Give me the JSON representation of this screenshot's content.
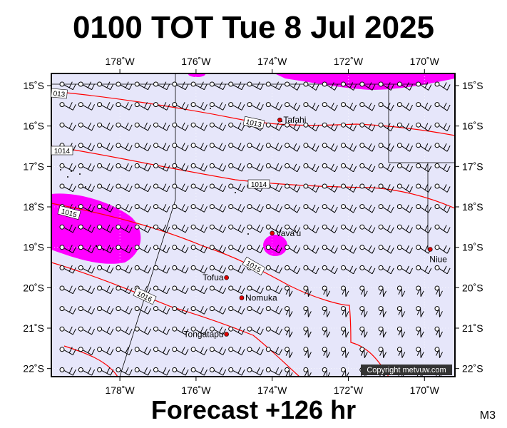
{
  "header": {
    "title": "0100 TOT Tue 8 Jul 2025"
  },
  "footer": {
    "forecast": "Forecast +126 hr",
    "code": "M3"
  },
  "map": {
    "lon_range": [
      -179.8,
      -169.2
    ],
    "lat_range": [
      -22.2,
      -14.7
    ],
    "lon_ticks": [
      {
        "value": -178,
        "label": "178˚W"
      },
      {
        "value": -176,
        "label": "176˚W"
      },
      {
        "value": -174,
        "label": "174˚W"
      },
      {
        "value": -172,
        "label": "172˚W"
      },
      {
        "value": -170,
        "label": "170˚W"
      }
    ],
    "lat_ticks": [
      {
        "value": -15,
        "label": "15˚S"
      },
      {
        "value": -16,
        "label": "16˚S"
      },
      {
        "value": -17,
        "label": "17˚S"
      },
      {
        "value": -18,
        "label": "18˚S"
      },
      {
        "value": -19,
        "label": "19˚S"
      },
      {
        "value": -20,
        "label": "20˚S"
      },
      {
        "value": -21,
        "label": "21˚S"
      },
      {
        "value": -22,
        "label": "22˚S"
      }
    ],
    "places": [
      {
        "name": "Tafahi",
        "lon": -173.8,
        "lat": -15.85
      },
      {
        "name": "Vava'u",
        "lon": -174.0,
        "lat": -18.65
      },
      {
        "name": "Niue",
        "lon": -169.85,
        "lat": -19.05
      },
      {
        "name": "Tofua",
        "lon": -175.2,
        "lat": -19.75
      },
      {
        "name": "Nomuka",
        "lon": -174.8,
        "lat": -20.25
      },
      {
        "name": "Tongatapu",
        "lon": -175.2,
        "lat": -21.15
      }
    ],
    "isobars": [
      {
        "label": "013",
        "label2": "1013"
      },
      {
        "label": "1014",
        "label2": "1014"
      },
      {
        "label": "1015",
        "label2": "1015"
      },
      {
        "label": "1016"
      }
    ],
    "copyright": "Copyright metvuw.com",
    "colors": {
      "background": "#e6e6fa",
      "isobar": "#ff0000",
      "rain": "#ff00ff",
      "land": "#000000"
    }
  }
}
